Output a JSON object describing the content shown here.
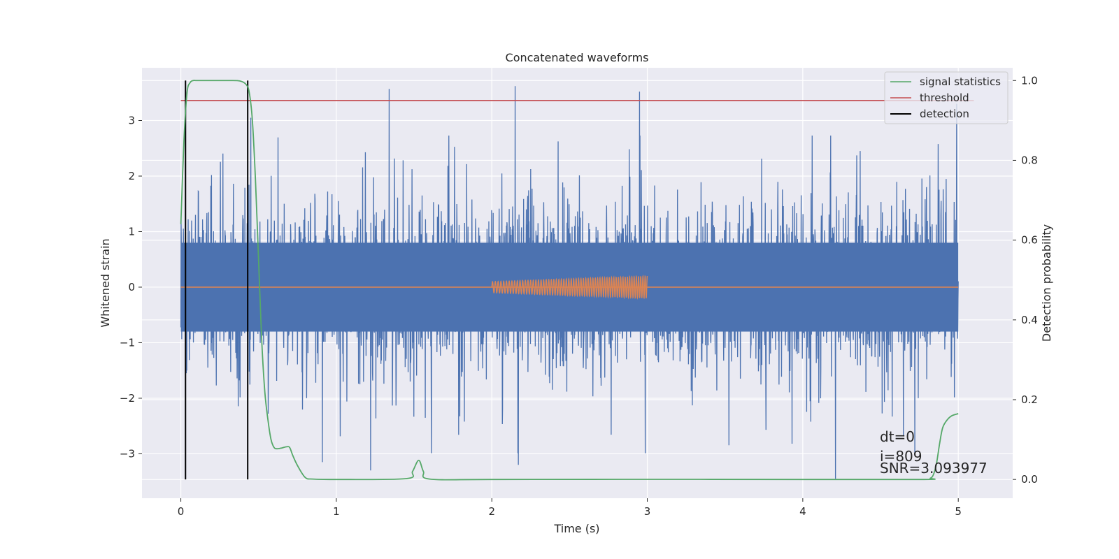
{
  "chart_data": {
    "type": "line",
    "title": "Concatenated waveforms",
    "xlabel": "Time (s)",
    "ylabel": "Whitened strain",
    "y2label": "Detection probability",
    "xlim": [
      -0.25,
      5.35
    ],
    "ylim": [
      -3.8,
      3.95
    ],
    "y2lim": [
      -0.047,
      1.032
    ],
    "x_ticks": [
      0,
      1,
      2,
      3,
      4,
      5
    ],
    "x_tick_labels": [
      "0",
      "1",
      "2",
      "3",
      "4",
      "5"
    ],
    "y_ticks": [
      -3,
      -2,
      -1,
      0,
      1,
      2,
      3
    ],
    "y_tick_labels": [
      "−3",
      "−2",
      "−1",
      "0",
      "1",
      "2",
      "3"
    ],
    "y2_ticks": [
      0.0,
      0.2,
      0.4,
      0.6,
      0.8,
      1.0
    ],
    "y2_tick_labels": [
      "0.0",
      "0.2",
      "0.4",
      "0.6",
      "0.8",
      "1.0"
    ],
    "grid": true,
    "legend_position": "top-right",
    "colors": {
      "strain": "#4c72b0",
      "template": "#dd8452",
      "signal_statistics": "#55a868",
      "threshold": "#c44e52",
      "detection": "#000000",
      "axes_bg": "#eaeaf2",
      "grid": "#ffffff"
    },
    "strain": {
      "x_range": [
        0,
        5
      ],
      "envelope": [
        -2.6,
        2.6
      ],
      "core_band": [
        -0.8,
        0.8
      ],
      "peaks": [
        {
          "x": 1.34,
          "y": 3.57
        },
        {
          "x": 2.15,
          "y": 3.62
        },
        {
          "x": 2.95,
          "y": 3.52
        },
        {
          "x": 0.45,
          "y": 3.05
        },
        {
          "x": 4.99,
          "y": 3.3
        },
        {
          "x": 4.21,
          "y": -3.45
        },
        {
          "x": 0.91,
          "y": -3.15
        },
        {
          "x": 1.22,
          "y": -3.3
        },
        {
          "x": 2.17,
          "y": -3.2
        },
        {
          "x": 4.72,
          "y": -3.0
        }
      ]
    },
    "template": {
      "x": [
        0,
        5
      ],
      "y": [
        0,
        0
      ],
      "chirp": {
        "x_start": 2.0,
        "x_end": 3.0,
        "amplitude_start": 0.1,
        "amplitude_end": 0.2,
        "cycles": 55
      }
    },
    "signal_statistics": {
      "x": [
        0.0,
        0.02,
        0.04,
        0.06,
        0.08,
        0.1,
        0.15,
        0.2,
        0.3,
        0.38,
        0.42,
        0.44,
        0.46,
        0.48,
        0.5,
        0.52,
        0.54,
        0.56,
        0.58,
        0.6,
        0.62,
        0.65,
        0.68,
        0.7,
        0.72,
        0.75,
        0.8,
        0.85,
        1.0,
        1.45,
        1.49,
        1.53,
        1.56,
        1.6,
        2.0,
        3.0,
        4.0,
        4.78,
        4.82,
        4.84,
        4.86,
        4.88,
        4.9,
        4.93,
        4.96,
        5.0
      ],
      "y": [
        0.64,
        0.85,
        0.97,
        0.995,
        1.0,
        1.0,
        1.0,
        1.0,
        1.0,
        0.999,
        0.99,
        0.97,
        0.9,
        0.75,
        0.55,
        0.35,
        0.22,
        0.15,
        0.1,
        0.08,
        0.077,
        0.079,
        0.082,
        0.08,
        0.06,
        0.035,
        0.005,
        0.001,
        0.0,
        0.002,
        0.02,
        0.048,
        0.02,
        0.001,
        0.0,
        0.0003,
        0.0,
        0.0,
        0.003,
        0.012,
        0.04,
        0.09,
        0.13,
        0.15,
        0.16,
        0.165
      ]
    },
    "threshold": {
      "x": [
        0,
        5.1
      ],
      "y": 0.95
    },
    "detections": [
      0.03,
      0.43
    ],
    "legend": [
      "signal statistics",
      "threshold",
      "detection"
    ],
    "annotations": [
      "dt=0",
      "i=809",
      "SNR=3.093977"
    ]
  }
}
